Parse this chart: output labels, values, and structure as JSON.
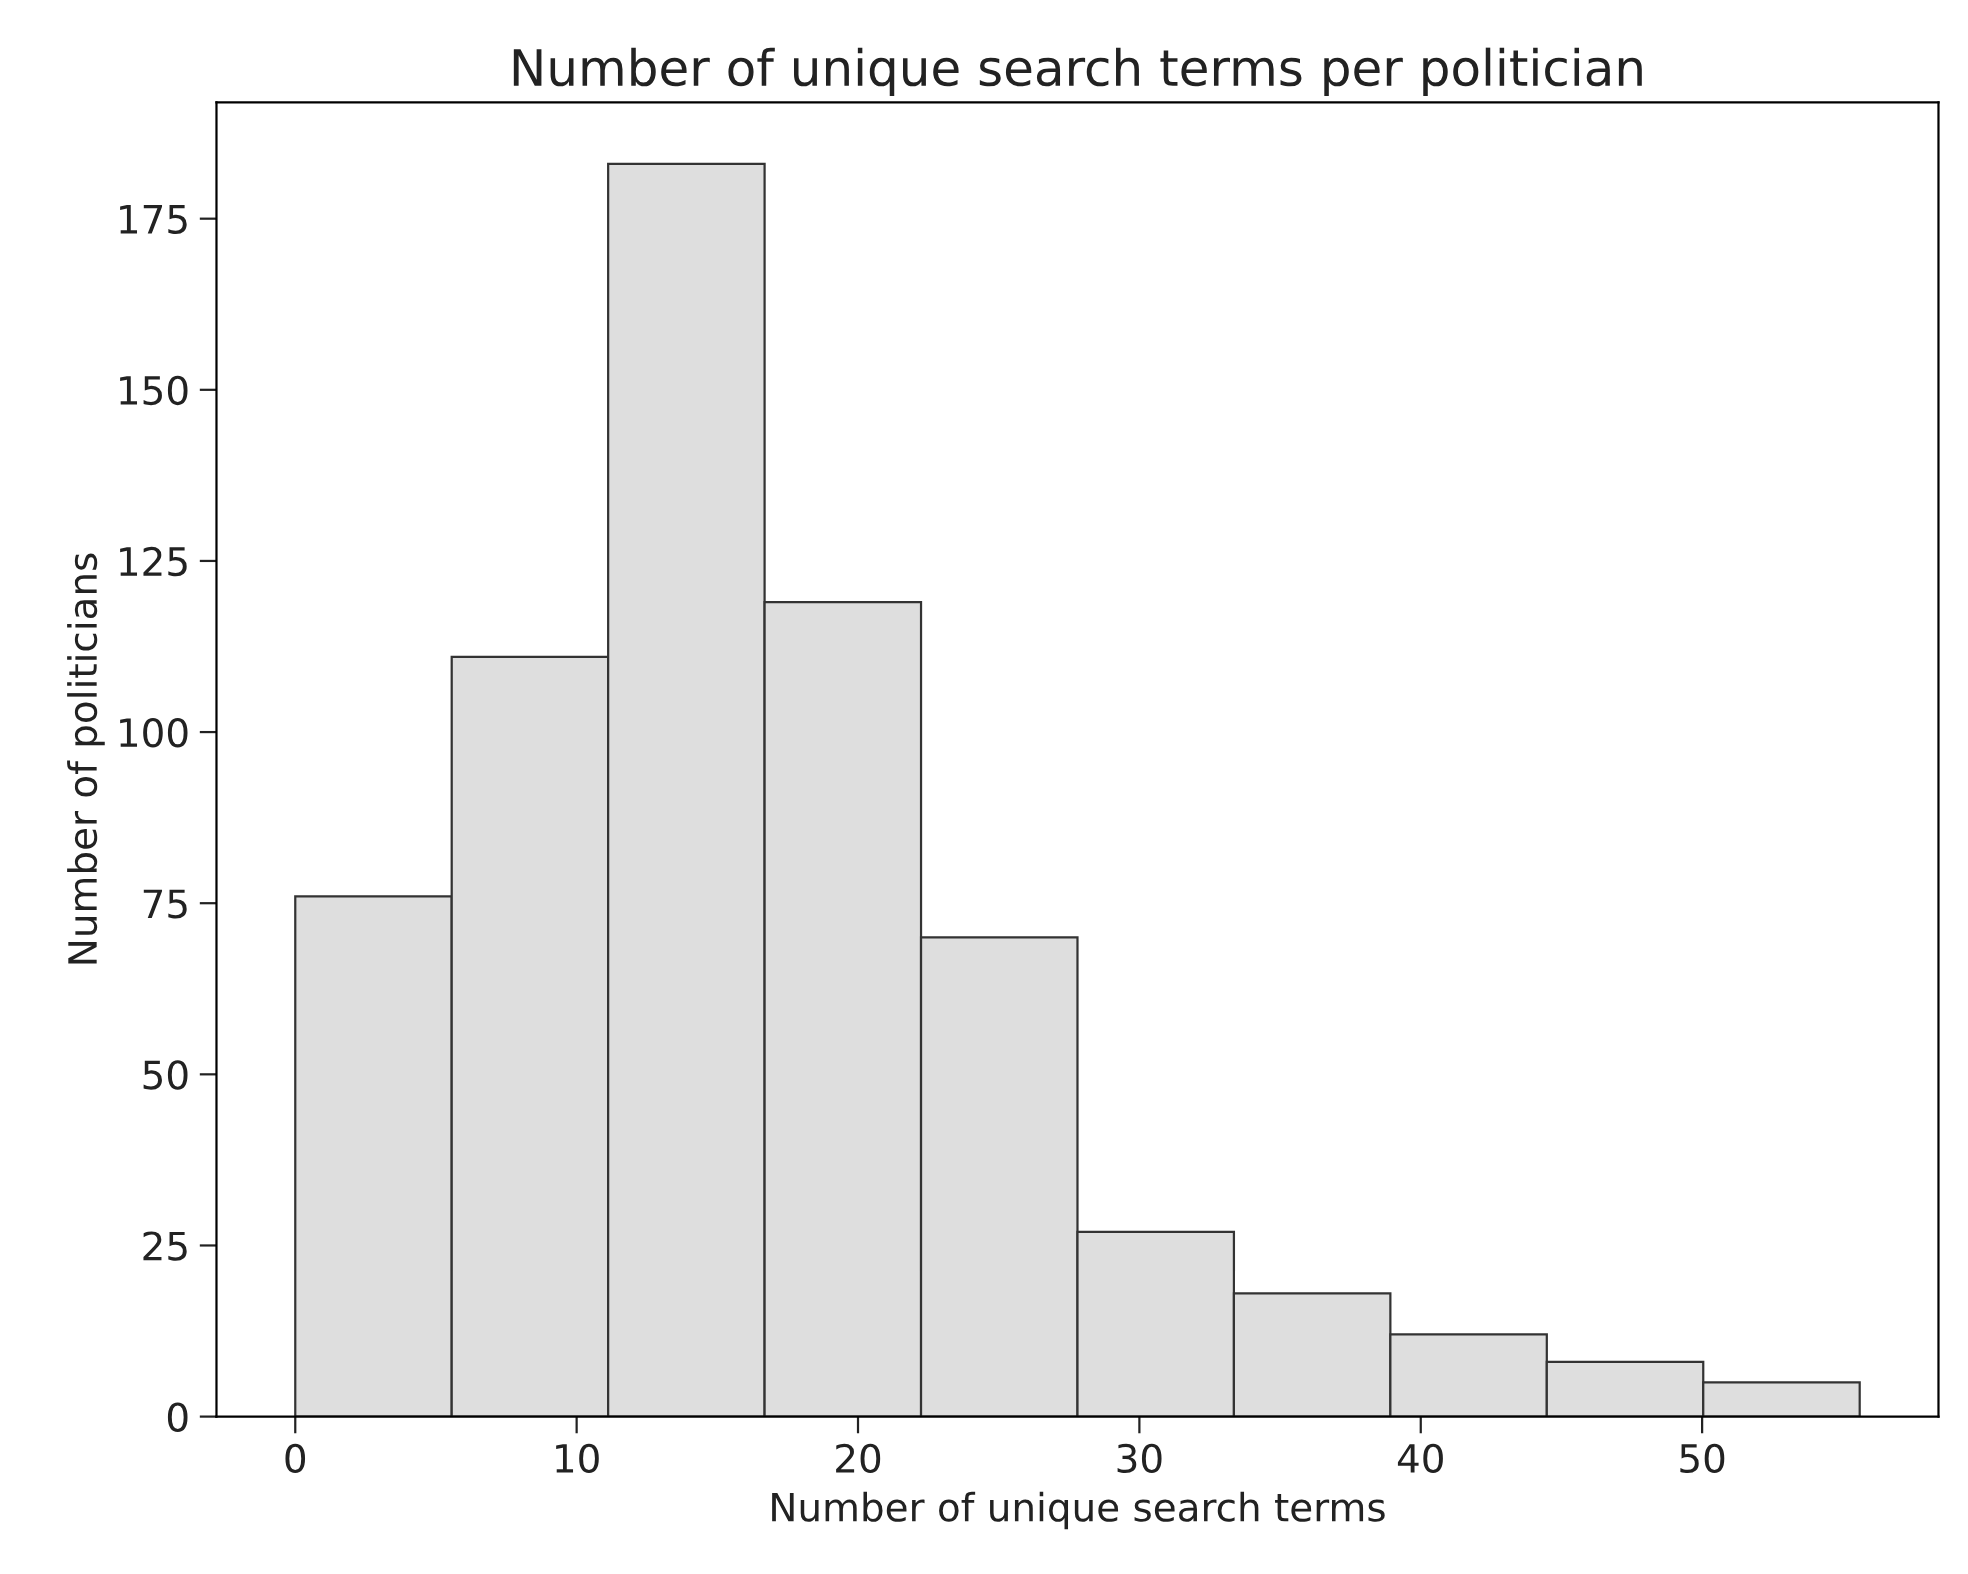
{
  "chart_data": {
    "type": "histogram",
    "title": "Number of unique search terms per politician",
    "xlabel": "Number of unique search terms",
    "ylabel": "Number of politicians",
    "bins": [
      0,
      5.56,
      11.12,
      16.68,
      22.24,
      27.8,
      33.36,
      38.92,
      44.48,
      50.04,
      55.6
    ],
    "values": [
      76,
      111,
      183,
      119,
      70,
      27,
      18,
      12,
      8,
      5
    ],
    "color": "#dedede",
    "xlim": [
      -2.8,
      58.4
    ],
    "xticks": [
      0,
      10,
      20,
      30,
      40,
      50
    ],
    "ylim": [
      0,
      192
    ],
    "yticks": [
      0,
      25,
      50,
      75,
      100,
      125,
      150,
      175
    ],
    "grid": false
  }
}
